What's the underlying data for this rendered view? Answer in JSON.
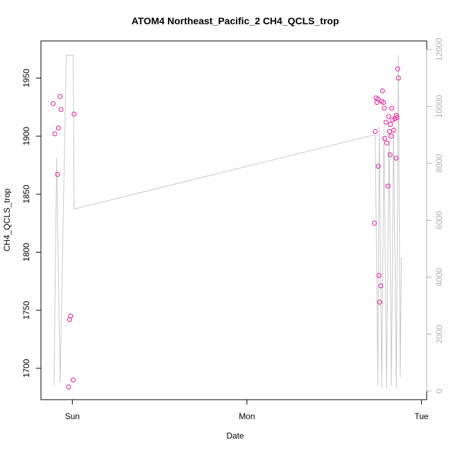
{
  "chart_data": {
    "type": "scatter",
    "title": "ATOM4 Northeast_Pacific_2 CH4_QCLS_trop",
    "xlabel": "Date",
    "ylabel": "CH4_QCLS_trop",
    "x_ticks": [
      {
        "label": "Sun",
        "value": 0
      },
      {
        "label": "Mon",
        "value": 1
      },
      {
        "label": "Tue",
        "value": 2
      }
    ],
    "ylim": [
      1673,
      1982
    ],
    "y_ticks": [
      1700,
      1750,
      1800,
      1850,
      1900,
      1950
    ],
    "y2lim": [
      -300,
      12300
    ],
    "y2_ticks": [
      0,
      2000,
      4000,
      6000,
      8000,
      10000,
      12000
    ],
    "grid": false,
    "point_color": "#e8149a",
    "line_color": "#c8c8c8",
    "right_axis_color": "#b0b0b0",
    "series": [
      {
        "kind": "points",
        "axis": "left",
        "x": [
          -0.11,
          -0.1,
          -0.085,
          -0.08,
          -0.07,
          -0.065,
          -0.022,
          -0.016,
          -0.01,
          0.005,
          0.01,
          1.73,
          1.735,
          1.74,
          1.745,
          1.75,
          1.752,
          1.757,
          1.76,
          1.767,
          1.772,
          1.777,
          1.782,
          1.787,
          1.79,
          1.797,
          1.802,
          1.807,
          1.812,
          1.817,
          1.82,
          1.822,
          1.827,
          1.83,
          1.834,
          1.841,
          1.848,
          1.855,
          1.855,
          1.86,
          1.864,
          1.868
        ],
        "y": [
          1928,
          1902,
          1867,
          1907,
          1934,
          1923,
          1684,
          1742,
          1745,
          1690,
          1919,
          1825,
          1904,
          1933,
          1929,
          1932,
          1874,
          1780,
          1757,
          1771,
          1930,
          1939,
          1929,
          1924,
          1898,
          1912,
          1894,
          1857,
          1917,
          1904,
          1884,
          1910,
          1900,
          1924,
          1914,
          1905,
          1915,
          1881,
          1918,
          1916,
          1958,
          1950
        ]
      },
      {
        "kind": "line",
        "axis": "right",
        "x": [
          -0.105,
          -0.09,
          -0.07,
          -0.035,
          -0.03,
          -0.025,
          0.005,
          0.01,
          1.73,
          1.735,
          1.75,
          1.758,
          1.772,
          1.785,
          1.8,
          1.815,
          1.828,
          1.84,
          1.856,
          1.868,
          1.878,
          1.885
        ],
        "y": [
          200,
          8200,
          300,
          11800,
          11800,
          11800,
          11800,
          6400,
          9000,
          9000,
          200,
          9300,
          100,
          9200,
          100,
          9100,
          200,
          9300,
          100,
          11800,
          500,
          4700
        ]
      }
    ]
  }
}
